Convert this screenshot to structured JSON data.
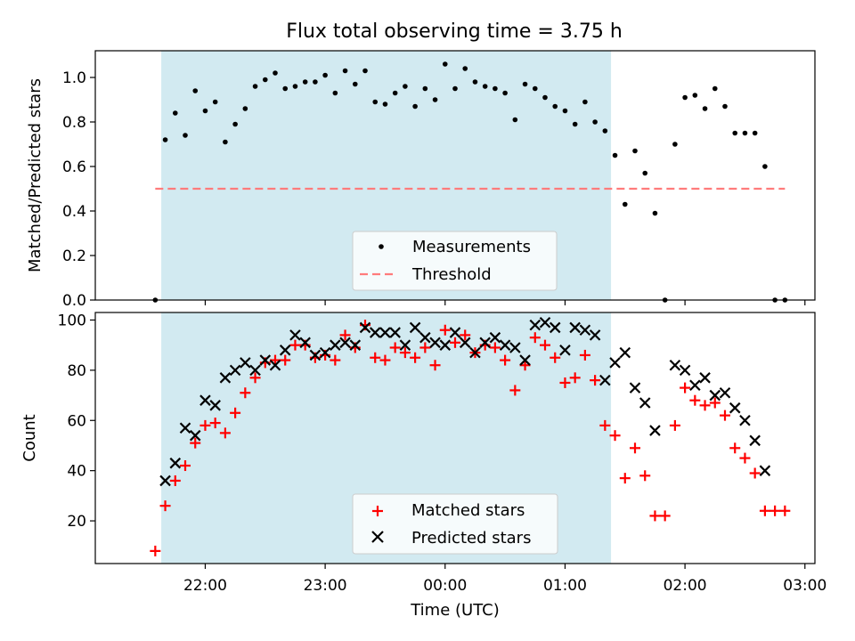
{
  "chart_data": {
    "type": "scatter",
    "title": "Flux total observing time = 3.75 h",
    "xlabel": "Time (UTC)",
    "x_tick_labels": [
      "22:00",
      "23:00",
      "00:00",
      "01:00",
      "02:00",
      "03:00"
    ],
    "shaded_interval": [
      "21:38",
      "01:23"
    ],
    "top_panel": {
      "ylabel": "Matched/Predicted stars",
      "ylim": [
        0,
        1.12
      ],
      "y_ticks": [
        "0.0",
        "0.2",
        "0.4",
        "0.6",
        "0.8",
        "1.0"
      ],
      "legend_position": "lower-center",
      "threshold": {
        "name": "Threshold",
        "value": 0.5,
        "x_range": [
          "21:35",
          "02:50"
        ],
        "color": "#ff7b7b"
      },
      "measurements": {
        "name": "Measurements",
        "color": "#000000",
        "points": [
          [
            "21:35",
            0.0
          ],
          [
            "21:40",
            0.72
          ],
          [
            "21:45",
            0.84
          ],
          [
            "21:50",
            0.74
          ],
          [
            "21:55",
            0.94
          ],
          [
            "22:00",
            0.85
          ],
          [
            "22:05",
            0.89
          ],
          [
            "22:10",
            0.71
          ],
          [
            "22:15",
            0.79
          ],
          [
            "22:20",
            0.86
          ],
          [
            "22:25",
            0.96
          ],
          [
            "22:30",
            0.99
          ],
          [
            "22:35",
            1.02
          ],
          [
            "22:40",
            0.95
          ],
          [
            "22:45",
            0.96
          ],
          [
            "22:50",
            0.98
          ],
          [
            "22:55",
            0.98
          ],
          [
            "23:00",
            1.01
          ],
          [
            "23:05",
            0.93
          ],
          [
            "23:10",
            1.03
          ],
          [
            "23:15",
            0.97
          ],
          [
            "23:20",
            1.03
          ],
          [
            "23:25",
            0.89
          ],
          [
            "23:30",
            0.88
          ],
          [
            "23:35",
            0.93
          ],
          [
            "23:40",
            0.96
          ],
          [
            "23:45",
            0.87
          ],
          [
            "23:50",
            0.95
          ],
          [
            "23:55",
            0.9
          ],
          [
            "00:00",
            1.06
          ],
          [
            "00:05",
            0.95
          ],
          [
            "00:10",
            1.04
          ],
          [
            "00:15",
            0.98
          ],
          [
            "00:20",
            0.96
          ],
          [
            "00:25",
            0.95
          ],
          [
            "00:30",
            0.93
          ],
          [
            "00:35",
            0.81
          ],
          [
            "00:40",
            0.97
          ],
          [
            "00:45",
            0.95
          ],
          [
            "00:50",
            0.91
          ],
          [
            "00:55",
            0.87
          ],
          [
            "01:00",
            0.85
          ],
          [
            "01:05",
            0.79
          ],
          [
            "01:10",
            0.89
          ],
          [
            "01:15",
            0.8
          ],
          [
            "01:20",
            0.76
          ],
          [
            "01:25",
            0.65
          ],
          [
            "01:30",
            0.43
          ],
          [
            "01:35",
            0.67
          ],
          [
            "01:40",
            0.57
          ],
          [
            "01:45",
            0.39
          ],
          [
            "01:50",
            0.0
          ],
          [
            "01:55",
            0.7
          ],
          [
            "02:00",
            0.91
          ],
          [
            "02:05",
            0.92
          ],
          [
            "02:10",
            0.86
          ],
          [
            "02:15",
            0.95
          ],
          [
            "02:20",
            0.87
          ],
          [
            "02:25",
            0.75
          ],
          [
            "02:30",
            0.75
          ],
          [
            "02:35",
            0.75
          ],
          [
            "02:40",
            0.6
          ],
          [
            "02:45",
            0.0
          ],
          [
            "02:50",
            0.0
          ]
        ]
      }
    },
    "bottom_panel": {
      "ylabel": "Count",
      "ylim": [
        3,
        103
      ],
      "y_ticks": [
        "20",
        "40",
        "60",
        "80",
        "100"
      ],
      "legend_position": "lower-center",
      "series": [
        {
          "name": "Matched stars",
          "marker": "+",
          "color": "#ff0000",
          "points": [
            [
              "21:35",
              8
            ],
            [
              "21:40",
              26
            ],
            [
              "21:45",
              36
            ],
            [
              "21:50",
              42
            ],
            [
              "21:55",
              51
            ],
            [
              "22:00",
              58
            ],
            [
              "22:05",
              59
            ],
            [
              "22:10",
              55
            ],
            [
              "22:15",
              63
            ],
            [
              "22:20",
              71
            ],
            [
              "22:25",
              77
            ],
            [
              "22:30",
              83
            ],
            [
              "22:35",
              84
            ],
            [
              "22:40",
              84
            ],
            [
              "22:45",
              90
            ],
            [
              "22:50",
              90
            ],
            [
              "22:55",
              85
            ],
            [
              "23:00",
              86
            ],
            [
              "23:05",
              84
            ],
            [
              "23:10",
              94
            ],
            [
              "23:15",
              89
            ],
            [
              "23:20",
              98
            ],
            [
              "23:25",
              85
            ],
            [
              "23:30",
              84
            ],
            [
              "23:35",
              89
            ],
            [
              "23:40",
              87
            ],
            [
              "23:45",
              85
            ],
            [
              "23:50",
              89
            ],
            [
              "23:55",
              82
            ],
            [
              "00:00",
              96
            ],
            [
              "00:05",
              91
            ],
            [
              "00:10",
              94
            ],
            [
              "00:15",
              87
            ],
            [
              "00:20",
              90
            ],
            [
              "00:25",
              89
            ],
            [
              "00:30",
              84
            ],
            [
              "00:35",
              72
            ],
            [
              "00:40",
              82
            ],
            [
              "00:45",
              93
            ],
            [
              "00:50",
              90
            ],
            [
              "00:55",
              85
            ],
            [
              "01:00",
              75
            ],
            [
              "01:05",
              77
            ],
            [
              "01:10",
              86
            ],
            [
              "01:15",
              76
            ],
            [
              "01:20",
              58
            ],
            [
              "01:25",
              54
            ],
            [
              "01:30",
              37
            ],
            [
              "01:35",
              49
            ],
            [
              "01:40",
              38
            ],
            [
              "01:45",
              22
            ],
            [
              "01:50",
              22
            ],
            [
              "01:55",
              58
            ],
            [
              "02:00",
              73
            ],
            [
              "02:05",
              68
            ],
            [
              "02:10",
              66
            ],
            [
              "02:15",
              67
            ],
            [
              "02:20",
              62
            ],
            [
              "02:25",
              49
            ],
            [
              "02:30",
              45
            ],
            [
              "02:35",
              39
            ],
            [
              "02:40",
              24
            ],
            [
              "02:45",
              24
            ],
            [
              "02:50",
              24
            ]
          ]
        },
        {
          "name": "Predicted stars",
          "marker": "x",
          "color": "#000000",
          "points": [
            [
              "21:40",
              36
            ],
            [
              "21:45",
              43
            ],
            [
              "21:50",
              57
            ],
            [
              "21:55",
              54
            ],
            [
              "22:00",
              68
            ],
            [
              "22:05",
              66
            ],
            [
              "22:10",
              77
            ],
            [
              "22:15",
              80
            ],
            [
              "22:20",
              83
            ],
            [
              "22:25",
              80
            ],
            [
              "22:30",
              84
            ],
            [
              "22:35",
              82
            ],
            [
              "22:40",
              88
            ],
            [
              "22:45",
              94
            ],
            [
              "22:50",
              91
            ],
            [
              "22:55",
              86
            ],
            [
              "23:00",
              87
            ],
            [
              "23:05",
              90
            ],
            [
              "23:10",
              91
            ],
            [
              "23:15",
              90
            ],
            [
              "23:20",
              97
            ],
            [
              "23:25",
              95
            ],
            [
              "23:30",
              95
            ],
            [
              "23:35",
              95
            ],
            [
              "23:40",
              90
            ],
            [
              "23:45",
              97
            ],
            [
              "23:50",
              93
            ],
            [
              "23:55",
              91
            ],
            [
              "00:00",
              90
            ],
            [
              "00:05",
              95
            ],
            [
              "00:10",
              91
            ],
            [
              "00:15",
              87
            ],
            [
              "00:20",
              91
            ],
            [
              "00:25",
              93
            ],
            [
              "00:30",
              90
            ],
            [
              "00:35",
              89
            ],
            [
              "00:40",
              84
            ],
            [
              "00:45",
              98
            ],
            [
              "00:50",
              99
            ],
            [
              "00:55",
              97
            ],
            [
              "01:00",
              88
            ],
            [
              "01:05",
              97
            ],
            [
              "01:10",
              96
            ],
            [
              "01:15",
              94
            ],
            [
              "01:20",
              76
            ],
            [
              "01:25",
              83
            ],
            [
              "01:30",
              87
            ],
            [
              "01:35",
              73
            ],
            [
              "01:40",
              67
            ],
            [
              "01:45",
              56
            ],
            [
              "01:55",
              82
            ],
            [
              "02:00",
              80
            ],
            [
              "02:05",
              74
            ],
            [
              "02:10",
              77
            ],
            [
              "02:15",
              70
            ],
            [
              "02:20",
              71
            ],
            [
              "02:25",
              65
            ],
            [
              "02:30",
              60
            ],
            [
              "02:35",
              52
            ],
            [
              "02:40",
              40
            ]
          ]
        }
      ]
    },
    "colors": {
      "shade": "#add8e6",
      "threshold": "#ff7b7b",
      "matched": "#ff0000",
      "predicted": "#000000",
      "measurements": "#000000"
    }
  }
}
